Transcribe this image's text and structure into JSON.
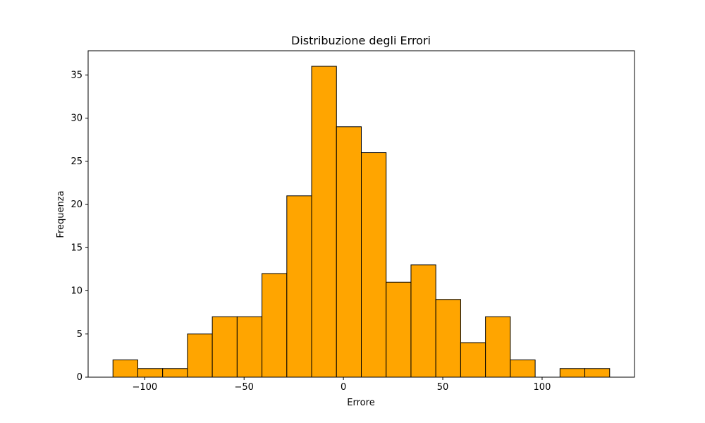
{
  "chart_data": {
    "type": "bar",
    "title": "Distribuzione degli Errori",
    "xlabel": "Errore",
    "ylabel": "Frequenza",
    "bin_edges": [
      -116,
      -103.5,
      -91,
      -78.5,
      -66,
      -53.5,
      -41,
      -28.5,
      -16,
      -3.5,
      9,
      21.5,
      34,
      46.5,
      59,
      71.5,
      84,
      96.5,
      109,
      121.5,
      134
    ],
    "values": [
      2,
      1,
      1,
      5,
      7,
      7,
      12,
      21,
      36,
      29,
      26,
      11,
      13,
      9,
      4,
      7,
      2,
      0,
      1,
      1
    ],
    "xlim": [
      -128.5,
      146.5
    ],
    "ylim": [
      0,
      37.8
    ],
    "xticks": [
      -100,
      -50,
      0,
      50,
      100
    ],
    "xtick_labels": [
      "−100",
      "−50",
      "0",
      "50",
      "100"
    ],
    "yticks": [
      0,
      5,
      10,
      15,
      20,
      25,
      30,
      35
    ],
    "ytick_labels": [
      "0",
      "5",
      "10",
      "15",
      "20",
      "25",
      "30",
      "35"
    ],
    "grid": false,
    "colors": {
      "bar_fill": "#ffa500",
      "bar_edge": "#000000"
    }
  }
}
